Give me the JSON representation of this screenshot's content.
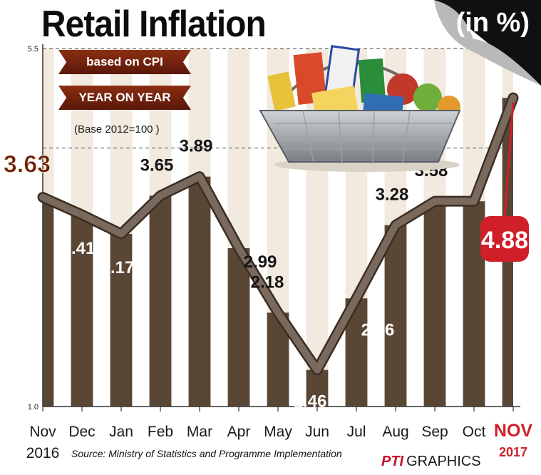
{
  "header": {
    "title": "Retail Inflation",
    "unit": "(in %)",
    "ribbon_1": "based on CPI",
    "ribbon_2": "YEAR ON YEAR",
    "base_note": "(Base 2012=100 )"
  },
  "chart_data": {
    "type": "line",
    "title": "Retail Inflation",
    "unit": "(in %)",
    "categories": [
      "Nov",
      "Dec",
      "Jan",
      "Feb",
      "Mar",
      "Apr",
      "May",
      "Jun",
      "Jul",
      "Aug",
      "Sep",
      "Oct",
      "NOV"
    ],
    "category_years": [
      "2016",
      "",
      "",
      "",
      "",
      "",
      "",
      "",
      "",
      "",
      "",
      "",
      "2017"
    ],
    "values": [
      3.63,
      3.41,
      3.17,
      3.65,
      3.89,
      2.99,
      2.18,
      1.46,
      2.36,
      3.28,
      3.58,
      3.58,
      4.88
    ],
    "value_labels": [
      "3.63",
      "3.41",
      "3.17",
      "3.65",
      "3.89",
      "2.99",
      "2.18",
      "1.46",
      "2.36",
      "3.28",
      "3.58",
      "",
      "4.88"
    ],
    "y_ticks": [
      "5.5",
      "1.0"
    ],
    "ylim": [
      1.0,
      5.5
    ],
    "grid": true,
    "highlight_first": "3.63",
    "highlight_last": "4.88",
    "colors": {
      "line": "#7a6a5d",
      "bar_dark": "#5a4634",
      "bar_light": "#f2eadf",
      "accent_red": "#d11f2a",
      "accent_brown": "#6a1a0c"
    }
  },
  "footer": {
    "source": "Source: Ministry of Statistics and Programme Implementation",
    "brand_prefix": "PTI",
    "brand_suffix": "GRAPHICS"
  }
}
